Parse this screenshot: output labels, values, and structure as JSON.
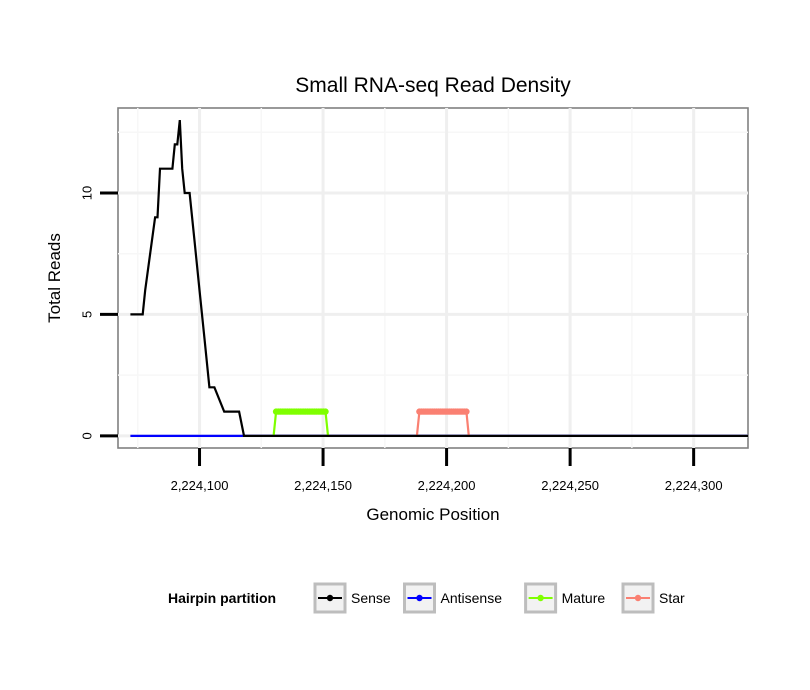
{
  "chart_data": {
    "type": "line",
    "title": "Small RNA-seq Read Density",
    "xlabel": "Genomic Position",
    "ylabel": "Total Reads",
    "xlim": [
      2224067,
      2224322
    ],
    "ylim": [
      -0.5,
      13.5
    ],
    "x_ticks": [
      2224100,
      2224150,
      2224200,
      2224250,
      2224300
    ],
    "x_tick_labels": [
      "2,224,100",
      "2,224,150",
      "2,224,200",
      "2,224,250",
      "2,224,300"
    ],
    "y_ticks": [
      0,
      5,
      10
    ],
    "y_tick_labels": [
      "0",
      "5",
      "10"
    ],
    "grid": true,
    "legend": {
      "title": "Hairpin partition",
      "position": "bottom",
      "entries": [
        {
          "label": "Sense",
          "color": "#000000"
        },
        {
          "label": "Antisense",
          "color": "#0000ff"
        },
        {
          "label": "Mature",
          "color": "#7fff00"
        },
        {
          "label": "Star",
          "color": "#fa8072"
        }
      ]
    },
    "series": [
      {
        "name": "Sense",
        "color": "#000000",
        "step": true,
        "x": [
          2224072,
          2224077,
          2224078,
          2224082,
          2224083,
          2224084,
          2224086,
          2224087,
          2224089,
          2224090,
          2224091,
          2224092,
          2224093,
          2224094,
          2224096,
          2224098,
          2224100,
          2224102,
          2224104,
          2224106,
          2224110,
          2224116,
          2224118,
          2224158,
          2224322
        ],
        "values": [
          5,
          5,
          6,
          9,
          9,
          11,
          11,
          11,
          11,
          12,
          12,
          13,
          11,
          10,
          10,
          8,
          6,
          4,
          2,
          2,
          1,
          1,
          0,
          0,
          0
        ]
      },
      {
        "name": "Antisense",
        "color": "#0000ff",
        "step": false,
        "x": [
          2224072,
          2224322
        ],
        "values": [
          0,
          0
        ]
      },
      {
        "name": "Mature",
        "color": "#7fff00",
        "step": false,
        "x": [
          2224130,
          2224131,
          2224151,
          2224152
        ],
        "values": [
          0,
          1,
          1,
          0
        ]
      },
      {
        "name": "Star",
        "color": "#fa8072",
        "step": false,
        "x": [
          2224188,
          2224189,
          2224208,
          2224209
        ],
        "values": [
          0,
          1,
          1,
          0
        ]
      }
    ]
  }
}
